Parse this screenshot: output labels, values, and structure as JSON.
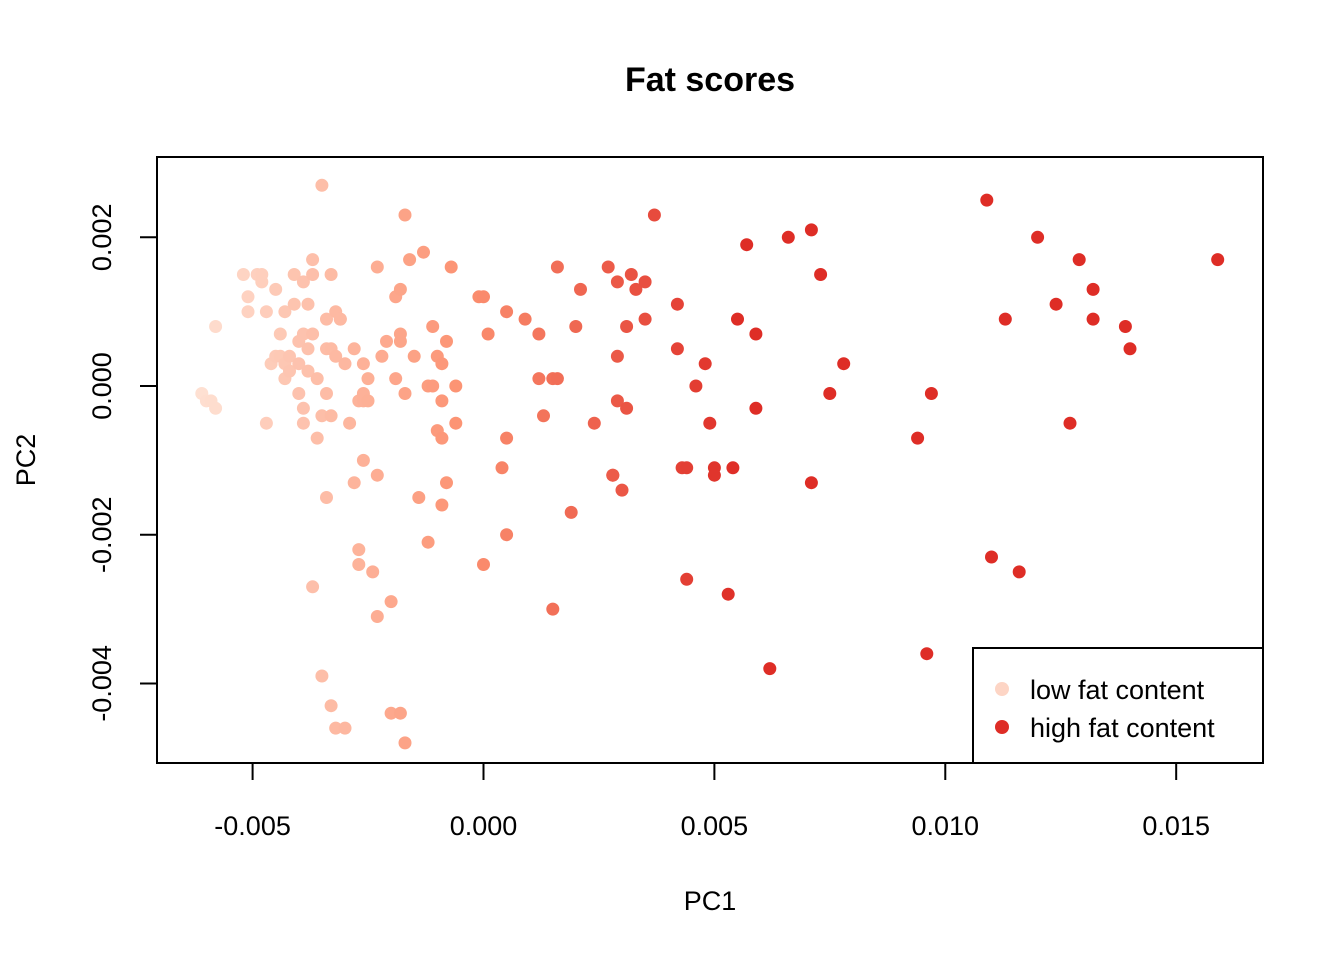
{
  "chart_data": {
    "type": "scatter",
    "title": "Fat scores",
    "xlabel": "PC1",
    "ylabel": "PC2",
    "xlim": [
      -0.00707,
      0.01688
    ],
    "ylim": [
      -0.00507,
      0.00308
    ],
    "x_ticks": [
      -0.005,
      0.0,
      0.005,
      0.01,
      0.015
    ],
    "x_tick_labels": [
      "-0.005",
      "0.000",
      "0.005",
      "0.010",
      "0.015"
    ],
    "y_ticks": [
      -0.004,
      -0.002,
      0.0,
      0.002
    ],
    "y_tick_labels": [
      "-0.004",
      "-0.002",
      "0.000",
      "0.002"
    ],
    "color_scale": {
      "low": "#FEE0D2",
      "mid": "#FC9272",
      "high": "#DE2D26"
    },
    "legend": {
      "position": "bottom-right",
      "entries": [
        {
          "label": "low fat content",
          "color": "#FDD5C5"
        },
        {
          "label": "high fat content",
          "color": "#DE2D26"
        }
      ]
    },
    "points": [
      {
        "x": -0.0061,
        "y": -0.0001,
        "t": 0.0
      },
      {
        "x": -0.006,
        "y": -0.0002,
        "t": 0.01
      },
      {
        "x": -0.0059,
        "y": -0.0002,
        "t": 0.02
      },
      {
        "x": -0.0058,
        "y": -0.0003,
        "t": 0.02
      },
      {
        "x": -0.0058,
        "y": 0.0008,
        "t": 0.03
      },
      {
        "x": -0.0052,
        "y": 0.0015,
        "t": 0.08
      },
      {
        "x": -0.0051,
        "y": 0.0012,
        "t": 0.09
      },
      {
        "x": -0.0051,
        "y": 0.001,
        "t": 0.09
      },
      {
        "x": -0.0049,
        "y": 0.0015,
        "t": 0.1
      },
      {
        "x": -0.0048,
        "y": 0.0015,
        "t": 0.11
      },
      {
        "x": -0.0048,
        "y": 0.0014,
        "t": 0.11
      },
      {
        "x": -0.0047,
        "y": -0.0005,
        "t": 0.12
      },
      {
        "x": -0.0047,
        "y": 0.001,
        "t": 0.12
      },
      {
        "x": -0.0046,
        "y": 0.0003,
        "t": 0.13
      },
      {
        "x": -0.0045,
        "y": 0.0013,
        "t": 0.14
      },
      {
        "x": -0.0045,
        "y": 0.0004,
        "t": 0.14
      },
      {
        "x": -0.0044,
        "y": 0.0007,
        "t": 0.15
      },
      {
        "x": -0.0044,
        "y": 0.0004,
        "t": 0.15
      },
      {
        "x": -0.0043,
        "y": 0.0003,
        "t": 0.16
      },
      {
        "x": -0.0043,
        "y": 0.0001,
        "t": 0.16
      },
      {
        "x": -0.0043,
        "y": 0.001,
        "t": 0.16
      },
      {
        "x": -0.0042,
        "y": 0.0002,
        "t": 0.17
      },
      {
        "x": -0.0042,
        "y": 0.0004,
        "t": 0.17
      },
      {
        "x": -0.0041,
        "y": 0.0015,
        "t": 0.18
      },
      {
        "x": -0.0041,
        "y": 0.0011,
        "t": 0.18
      },
      {
        "x": -0.004,
        "y": 0.0006,
        "t": 0.19
      },
      {
        "x": -0.004,
        "y": 0.0003,
        "t": 0.19
      },
      {
        "x": -0.004,
        "y": -0.0001,
        "t": 0.19
      },
      {
        "x": -0.0039,
        "y": 0.0014,
        "t": 0.19
      },
      {
        "x": -0.0039,
        "y": 0.0007,
        "t": 0.19
      },
      {
        "x": -0.0039,
        "y": -0.0003,
        "t": 0.19
      },
      {
        "x": -0.0039,
        "y": -0.0005,
        "t": 0.19
      },
      {
        "x": -0.0038,
        "y": 0.0002,
        "t": 0.2
      },
      {
        "x": -0.0038,
        "y": 0.0011,
        "t": 0.2
      },
      {
        "x": -0.0038,
        "y": 0.0005,
        "t": 0.2
      },
      {
        "x": -0.0037,
        "y": 0.0017,
        "t": 0.21
      },
      {
        "x": -0.0037,
        "y": 0.0007,
        "t": 0.21
      },
      {
        "x": -0.0037,
        "y": 0.0015,
        "t": 0.21
      },
      {
        "x": -0.0036,
        "y": -0.0007,
        "t": 0.22
      },
      {
        "x": -0.0037,
        "y": -0.0027,
        "t": 0.21
      },
      {
        "x": -0.0036,
        "y": 0.0001,
        "t": 0.22
      },
      {
        "x": -0.0035,
        "y": 0.0027,
        "t": 0.22
      },
      {
        "x": -0.0035,
        "y": -0.0004,
        "t": 0.22
      },
      {
        "x": -0.0035,
        "y": -0.0039,
        "t": 0.22
      },
      {
        "x": -0.0034,
        "y": 0.0005,
        "t": 0.23
      },
      {
        "x": -0.0033,
        "y": -0.0043,
        "t": 0.24
      },
      {
        "x": -0.0032,
        "y": -0.0046,
        "t": 0.25
      },
      {
        "x": -0.0034,
        "y": 0.0009,
        "t": 0.23
      },
      {
        "x": -0.0034,
        "y": -0.0001,
        "t": 0.23
      },
      {
        "x": -0.0034,
        "y": -0.0015,
        "t": 0.23
      },
      {
        "x": -0.0033,
        "y": 0.0005,
        "t": 0.24
      },
      {
        "x": -0.0033,
        "y": -0.0004,
        "t": 0.24
      },
      {
        "x": -0.0033,
        "y": 0.0015,
        "t": 0.24
      },
      {
        "x": -0.0032,
        "y": 0.001,
        "t": 0.25
      },
      {
        "x": -0.0032,
        "y": 0.0004,
        "t": 0.25
      },
      {
        "x": -0.0031,
        "y": 0.0009,
        "t": 0.25
      },
      {
        "x": -0.0031,
        "y": 0.0009,
        "t": 0.25
      },
      {
        "x": -0.003,
        "y": 0.0003,
        "t": 0.26
      },
      {
        "x": -0.003,
        "y": -0.0046,
        "t": 0.26
      },
      {
        "x": -0.0029,
        "y": -0.0005,
        "t": 0.27
      },
      {
        "x": -0.0028,
        "y": 0.0005,
        "t": 0.28
      },
      {
        "x": -0.0028,
        "y": -0.0013,
        "t": 0.28
      },
      {
        "x": -0.0027,
        "y": -0.0002,
        "t": 0.29
      },
      {
        "x": -0.0027,
        "y": -0.0022,
        "t": 0.29
      },
      {
        "x": -0.0027,
        "y": -0.0024,
        "t": 0.29
      },
      {
        "x": -0.0026,
        "y": -0.0001,
        "t": 0.3
      },
      {
        "x": -0.0026,
        "y": -0.0002,
        "t": 0.3
      },
      {
        "x": -0.0026,
        "y": 0.0003,
        "t": 0.3
      },
      {
        "x": -0.0026,
        "y": -0.001,
        "t": 0.3
      },
      {
        "x": -0.0025,
        "y": 0.0001,
        "t": 0.31
      },
      {
        "x": -0.0025,
        "y": -0.0002,
        "t": 0.31
      },
      {
        "x": -0.0024,
        "y": -0.0025,
        "t": 0.32
      },
      {
        "x": -0.0023,
        "y": 0.0016,
        "t": 0.33
      },
      {
        "x": -0.0023,
        "y": -0.0031,
        "t": 0.33
      },
      {
        "x": -0.0023,
        "y": -0.0012,
        "t": 0.33
      },
      {
        "x": -0.0022,
        "y": 0.0004,
        "t": 0.34
      },
      {
        "x": -0.0021,
        "y": 0.0006,
        "t": 0.35
      },
      {
        "x": -0.002,
        "y": -0.0029,
        "t": 0.36
      },
      {
        "x": -0.002,
        "y": -0.0044,
        "t": 0.36
      },
      {
        "x": -0.0019,
        "y": 0.0012,
        "t": 0.37
      },
      {
        "x": -0.0019,
        "y": 0.0001,
        "t": 0.37
      },
      {
        "x": -0.0018,
        "y": 0.0013,
        "t": 0.38
      },
      {
        "x": -0.0018,
        "y": -0.0044,
        "t": 0.38
      },
      {
        "x": -0.0018,
        "y": 0.0007,
        "t": 0.38
      },
      {
        "x": -0.0018,
        "y": 0.0006,
        "t": 0.38
      },
      {
        "x": -0.0017,
        "y": 0.0023,
        "t": 0.39
      },
      {
        "x": -0.0017,
        "y": -0.0048,
        "t": 0.39
      },
      {
        "x": -0.0017,
        "y": -0.0001,
        "t": 0.39
      },
      {
        "x": -0.0016,
        "y": 0.0017,
        "t": 0.4
      },
      {
        "x": -0.0015,
        "y": 0.0004,
        "t": 0.4
      },
      {
        "x": -0.0014,
        "y": -0.0015,
        "t": 0.41
      },
      {
        "x": -0.0013,
        "y": 0.0018,
        "t": 0.42
      },
      {
        "x": -0.0012,
        "y": -0.0021,
        "t": 0.43
      },
      {
        "x": -0.0012,
        "y": 0.0,
        "t": 0.43
      },
      {
        "x": -0.0011,
        "y": 0.0008,
        "t": 0.44
      },
      {
        "x": -0.0011,
        "y": 0.0,
        "t": 0.44
      },
      {
        "x": -0.001,
        "y": 0.0004,
        "t": 0.45
      },
      {
        "x": -0.001,
        "y": -0.0006,
        "t": 0.45
      },
      {
        "x": -0.0009,
        "y": -0.0002,
        "t": 0.46
      },
      {
        "x": -0.0009,
        "y": -0.0007,
        "t": 0.46
      },
      {
        "x": -0.0009,
        "y": -0.0016,
        "t": 0.46
      },
      {
        "x": -0.0009,
        "y": 0.0003,
        "t": 0.46
      },
      {
        "x": -0.0008,
        "y": 0.0006,
        "t": 0.47
      },
      {
        "x": -0.0008,
        "y": -0.0013,
        "t": 0.47
      },
      {
        "x": -0.0007,
        "y": 0.0016,
        "t": 0.48
      },
      {
        "x": -0.0006,
        "y": 0.0,
        "t": 0.49
      },
      {
        "x": -0.0006,
        "y": -0.0005,
        "t": 0.49
      },
      {
        "x": -0.0001,
        "y": 0.0012,
        "t": 0.53
      },
      {
        "x": 0.0,
        "y": 0.0012,
        "t": 0.54
      },
      {
        "x": 0.0,
        "y": -0.0024,
        "t": 0.54
      },
      {
        "x": 0.0001,
        "y": 0.0007,
        "t": 0.55
      },
      {
        "x": 0.0004,
        "y": -0.0011,
        "t": 0.57
      },
      {
        "x": 0.0005,
        "y": 0.001,
        "t": 0.58
      },
      {
        "x": 0.0005,
        "y": -0.0007,
        "t": 0.58
      },
      {
        "x": 0.0005,
        "y": -0.002,
        "t": 0.58
      },
      {
        "x": 0.0009,
        "y": 0.0009,
        "t": 0.61
      },
      {
        "x": 0.0012,
        "y": 0.0007,
        "t": 0.64
      },
      {
        "x": 0.0012,
        "y": 0.0001,
        "t": 0.64
      },
      {
        "x": 0.0013,
        "y": -0.0004,
        "t": 0.65
      },
      {
        "x": 0.0015,
        "y": -0.003,
        "t": 0.67
      },
      {
        "x": 0.0015,
        "y": 0.0001,
        "t": 0.67
      },
      {
        "x": 0.0016,
        "y": 0.0016,
        "t": 0.68
      },
      {
        "x": 0.0016,
        "y": 0.0001,
        "t": 0.68
      },
      {
        "x": 0.0019,
        "y": -0.0017,
        "t": 0.7
      },
      {
        "x": 0.002,
        "y": 0.0008,
        "t": 0.71
      },
      {
        "x": 0.0021,
        "y": 0.0013,
        "t": 0.72
      },
      {
        "x": 0.0024,
        "y": -0.0005,
        "t": 0.74
      },
      {
        "x": 0.0027,
        "y": 0.0016,
        "t": 0.77
      },
      {
        "x": 0.0028,
        "y": -0.0012,
        "t": 0.77
      },
      {
        "x": 0.0028,
        "y": -0.0012,
        "t": 0.77
      },
      {
        "x": 0.0029,
        "y": 0.0014,
        "t": 0.78
      },
      {
        "x": 0.0029,
        "y": 0.0004,
        "t": 0.78
      },
      {
        "x": 0.0029,
        "y": -0.0002,
        "t": 0.78
      },
      {
        "x": 0.003,
        "y": -0.0014,
        "t": 0.79
      },
      {
        "x": 0.0031,
        "y": 0.0008,
        "t": 0.8
      },
      {
        "x": 0.0031,
        "y": -0.0003,
        "t": 0.8
      },
      {
        "x": 0.0032,
        "y": 0.0015,
        "t": 0.81
      },
      {
        "x": 0.0033,
        "y": 0.0013,
        "t": 0.82
      },
      {
        "x": 0.0035,
        "y": 0.0009,
        "t": 0.83
      },
      {
        "x": 0.0035,
        "y": 0.0014,
        "t": 0.83
      },
      {
        "x": 0.0037,
        "y": 0.0023,
        "t": 0.85
      },
      {
        "x": 0.0042,
        "y": 0.0005,
        "t": 0.89
      },
      {
        "x": 0.0042,
        "y": 0.0011,
        "t": 0.89
      },
      {
        "x": 0.0043,
        "y": -0.0011,
        "t": 0.9
      },
      {
        "x": 0.0044,
        "y": -0.0026,
        "t": 0.91
      },
      {
        "x": 0.0044,
        "y": -0.0011,
        "t": 0.91
      },
      {
        "x": 0.0046,
        "y": 0.0,
        "t": 0.92
      },
      {
        "x": 0.0048,
        "y": 0.0003,
        "t": 0.94
      },
      {
        "x": 0.0049,
        "y": -0.0005,
        "t": 0.95
      },
      {
        "x": 0.005,
        "y": -0.0011,
        "t": 0.96
      },
      {
        "x": 0.005,
        "y": -0.0012,
        "t": 0.96
      },
      {
        "x": 0.0053,
        "y": -0.0028,
        "t": 0.98
      },
      {
        "x": 0.0054,
        "y": -0.0011,
        "t": 0.99
      },
      {
        "x": 0.0055,
        "y": 0.0009,
        "t": 1.0
      },
      {
        "x": 0.0057,
        "y": 0.0019,
        "t": 1.0
      },
      {
        "x": 0.0059,
        "y": 0.0007,
        "t": 1.0
      },
      {
        "x": 0.0059,
        "y": -0.0003,
        "t": 1.0
      },
      {
        "x": 0.0062,
        "y": -0.0038,
        "t": 1.0
      },
      {
        "x": 0.0066,
        "y": 0.002,
        "t": 1.0
      },
      {
        "x": 0.0071,
        "y": 0.0021,
        "t": 1.0
      },
      {
        "x": 0.0071,
        "y": -0.0013,
        "t": 1.0
      },
      {
        "x": 0.0073,
        "y": 0.0015,
        "t": 1.0
      },
      {
        "x": 0.0075,
        "y": -0.0001,
        "t": 1.0
      },
      {
        "x": 0.0078,
        "y": 0.0003,
        "t": 1.0
      },
      {
        "x": 0.0094,
        "y": -0.0007,
        "t": 1.0
      },
      {
        "x": 0.0096,
        "y": -0.0036,
        "t": 1.0
      },
      {
        "x": 0.0097,
        "y": -0.0001,
        "t": 1.0
      },
      {
        "x": 0.0109,
        "y": 0.0025,
        "t": 1.0
      },
      {
        "x": 0.011,
        "y": -0.0023,
        "t": 1.0
      },
      {
        "x": 0.0113,
        "y": 0.0009,
        "t": 1.0
      },
      {
        "x": 0.0116,
        "y": -0.0025,
        "t": 1.0
      },
      {
        "x": 0.012,
        "y": 0.002,
        "t": 1.0
      },
      {
        "x": 0.0124,
        "y": 0.0011,
        "t": 1.0
      },
      {
        "x": 0.0127,
        "y": -0.0005,
        "t": 1.0
      },
      {
        "x": 0.0129,
        "y": 0.0017,
        "t": 1.0
      },
      {
        "x": 0.0132,
        "y": 0.0013,
        "t": 1.0
      },
      {
        "x": 0.0132,
        "y": 0.0009,
        "t": 1.0
      },
      {
        "x": 0.0139,
        "y": 0.0008,
        "t": 1.0
      },
      {
        "x": 0.014,
        "y": 0.0005,
        "t": 1.0
      },
      {
        "x": 0.0159,
        "y": 0.0017,
        "t": 1.0
      }
    ]
  }
}
